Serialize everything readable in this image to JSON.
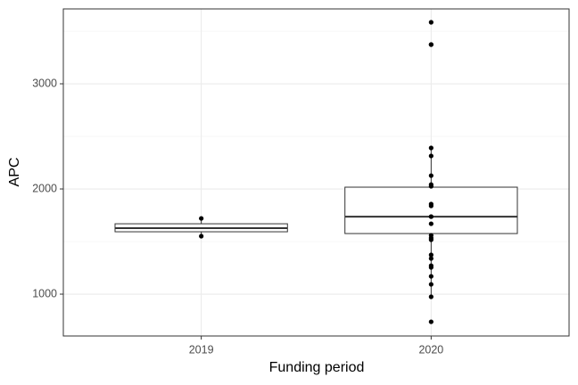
{
  "chart_data": {
    "type": "box",
    "x_label": "Funding period",
    "y_label": "APC",
    "categories": [
      "2019",
      "2020"
    ],
    "boxes": [
      {
        "whisker_low": 1551,
        "q1": 1593,
        "median": 1627,
        "q3": 1669,
        "whisker_high": 1720
      },
      {
        "whisker_low": 975,
        "q1": 1576,
        "median": 1737,
        "q3": 2017,
        "whisker_high": 2390
      }
    ],
    "points": [
      [
        1720,
        1551
      ],
      [
        3585,
        3373,
        3373,
        2390,
        2314,
        2127,
        2042,
        2025,
        1856,
        1839,
        1737,
        1737,
        1669,
        1559,
        1534,
        1517,
        1373,
        1339,
        1271,
        1254,
        1169,
        1093,
        975,
        737
      ]
    ],
    "ylim": [
      602,
      3712
    ],
    "yticks": [
      1000,
      2000,
      3000
    ],
    "minor_grid": [
      1500,
      2500,
      3500
    ],
    "grid": true,
    "box_color": "#333333",
    "point_color": "#000000"
  }
}
